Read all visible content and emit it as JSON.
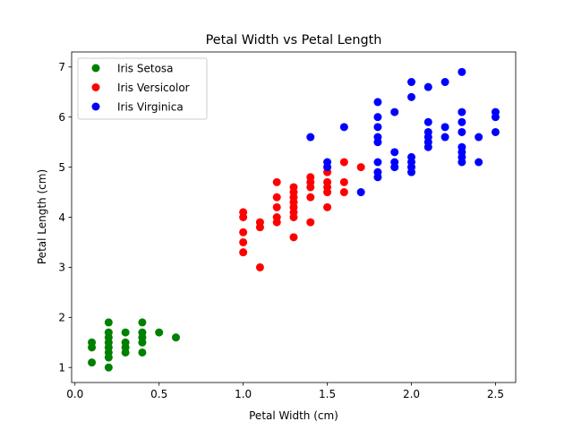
{
  "chart_data": {
    "type": "scatter",
    "title": "Petal Width vs Petal Length",
    "xlabel": "Petal Width (cm)",
    "ylabel": "Petal Length (cm)",
    "xlim": [
      -0.02,
      2.62
    ],
    "ylim": [
      0.7,
      7.3
    ],
    "xticks": [
      0.0,
      0.5,
      1.0,
      1.5,
      2.0,
      2.5
    ],
    "xtick_labels": [
      "0.0",
      "0.5",
      "1.0",
      "1.5",
      "2.0",
      "2.5"
    ],
    "yticks": [
      1,
      2,
      3,
      4,
      5,
      6,
      7
    ],
    "ytick_labels": [
      "1",
      "2",
      "3",
      "4",
      "5",
      "6",
      "7"
    ],
    "grid": false,
    "legend_position": "top-left",
    "series": [
      {
        "name": "Iris Setosa",
        "color": "#008000",
        "points": [
          [
            0.1,
            1.1
          ],
          [
            0.1,
            1.4
          ],
          [
            0.1,
            1.5
          ],
          [
            0.2,
            1.0
          ],
          [
            0.2,
            1.2
          ],
          [
            0.2,
            1.3
          ],
          [
            0.2,
            1.4
          ],
          [
            0.2,
            1.5
          ],
          [
            0.2,
            1.6
          ],
          [
            0.2,
            1.7
          ],
          [
            0.2,
            1.9
          ],
          [
            0.3,
            1.3
          ],
          [
            0.3,
            1.4
          ],
          [
            0.3,
            1.5
          ],
          [
            0.3,
            1.7
          ],
          [
            0.4,
            1.3
          ],
          [
            0.4,
            1.5
          ],
          [
            0.4,
            1.6
          ],
          [
            0.4,
            1.7
          ],
          [
            0.4,
            1.9
          ],
          [
            0.5,
            1.7
          ],
          [
            0.6,
            1.6
          ]
        ]
      },
      {
        "name": "Iris Versicolor",
        "color": "#ff0000",
        "points": [
          [
            1.0,
            3.3
          ],
          [
            1.0,
            3.5
          ],
          [
            1.0,
            3.7
          ],
          [
            1.0,
            4.0
          ],
          [
            1.0,
            4.1
          ],
          [
            1.1,
            3.0
          ],
          [
            1.1,
            3.8
          ],
          [
            1.1,
            3.9
          ],
          [
            1.2,
            3.9
          ],
          [
            1.2,
            4.0
          ],
          [
            1.2,
            4.2
          ],
          [
            1.2,
            4.4
          ],
          [
            1.2,
            4.7
          ],
          [
            1.3,
            3.6
          ],
          [
            1.3,
            4.0
          ],
          [
            1.3,
            4.1
          ],
          [
            1.3,
            4.2
          ],
          [
            1.3,
            4.3
          ],
          [
            1.3,
            4.4
          ],
          [
            1.3,
            4.5
          ],
          [
            1.3,
            4.6
          ],
          [
            1.4,
            3.9
          ],
          [
            1.4,
            4.4
          ],
          [
            1.4,
            4.6
          ],
          [
            1.4,
            4.7
          ],
          [
            1.4,
            4.8
          ],
          [
            1.5,
            4.2
          ],
          [
            1.5,
            4.5
          ],
          [
            1.5,
            4.6
          ],
          [
            1.5,
            4.7
          ],
          [
            1.5,
            4.9
          ],
          [
            1.6,
            4.5
          ],
          [
            1.6,
            4.7
          ],
          [
            1.6,
            5.1
          ],
          [
            1.7,
            5.0
          ]
        ]
      },
      {
        "name": "Iris Virginica",
        "color": "#0000ff",
        "points": [
          [
            1.4,
            5.6
          ],
          [
            1.5,
            5.0
          ],
          [
            1.5,
            5.1
          ],
          [
            1.6,
            5.8
          ],
          [
            1.7,
            4.5
          ],
          [
            1.8,
            4.8
          ],
          [
            1.8,
            4.9
          ],
          [
            1.8,
            5.1
          ],
          [
            1.8,
            5.5
          ],
          [
            1.8,
            5.6
          ],
          [
            1.8,
            5.8
          ],
          [
            1.8,
            6.0
          ],
          [
            1.8,
            6.3
          ],
          [
            1.9,
            5.0
          ],
          [
            1.9,
            5.1
          ],
          [
            1.9,
            5.3
          ],
          [
            1.9,
            6.1
          ],
          [
            2.0,
            4.9
          ],
          [
            2.0,
            5.0
          ],
          [
            2.0,
            5.1
          ],
          [
            2.0,
            5.2
          ],
          [
            2.0,
            6.4
          ],
          [
            2.0,
            6.7
          ],
          [
            2.1,
            5.4
          ],
          [
            2.1,
            5.5
          ],
          [
            2.1,
            5.6
          ],
          [
            2.1,
            5.7
          ],
          [
            2.1,
            5.9
          ],
          [
            2.1,
            6.6
          ],
          [
            2.2,
            5.6
          ],
          [
            2.2,
            5.8
          ],
          [
            2.2,
            6.7
          ],
          [
            2.3,
            5.1
          ],
          [
            2.3,
            5.2
          ],
          [
            2.3,
            5.3
          ],
          [
            2.3,
            5.4
          ],
          [
            2.3,
            5.7
          ],
          [
            2.3,
            5.9
          ],
          [
            2.3,
            6.1
          ],
          [
            2.3,
            6.9
          ],
          [
            2.4,
            5.1
          ],
          [
            2.4,
            5.6
          ],
          [
            2.5,
            5.7
          ],
          [
            2.5,
            6.0
          ],
          [
            2.5,
            6.1
          ]
        ]
      }
    ]
  }
}
